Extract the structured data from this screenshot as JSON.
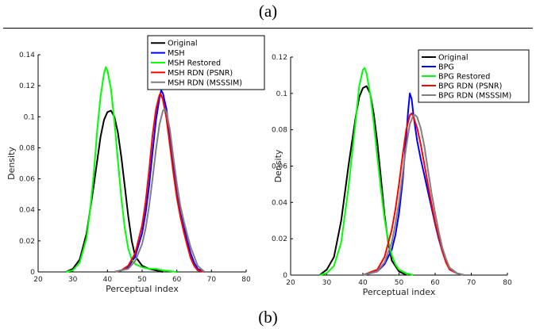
{
  "captions": {
    "top": "(a)",
    "bottom": "(b)"
  },
  "chart_data": [
    {
      "type": "line",
      "title": "",
      "xlabel": "Perceptual index",
      "ylabel": "Density",
      "xlim": [
        20,
        80
      ],
      "ylim": [
        0,
        0.14
      ],
      "xticks": [
        "20",
        "30",
        "40",
        "50",
        "60",
        "70",
        "80"
      ],
      "yticks": [
        "0",
        "0.02",
        "0.04",
        "0.06",
        "0.08",
        "0.1",
        "0.12",
        "0.14"
      ],
      "grid": false,
      "legend_position": "top-right",
      "series": [
        {
          "name": "Original",
          "color": "#000000",
          "points": [
            [
              28,
              0
            ],
            [
              30,
              0.002
            ],
            [
              32,
              0.008
            ],
            [
              34,
              0.025
            ],
            [
              36,
              0.055
            ],
            [
              38,
              0.087
            ],
            [
              39,
              0.098
            ],
            [
              40,
              0.103
            ],
            [
              41,
              0.104
            ],
            [
              42,
              0.1
            ],
            [
              43,
              0.09
            ],
            [
              44,
              0.074
            ],
            [
              45,
              0.055
            ],
            [
              46,
              0.036
            ],
            [
              47,
              0.02
            ],
            [
              48,
              0.01
            ],
            [
              50,
              0.004
            ],
            [
              52,
              0.002
            ],
            [
              54,
              0.001
            ],
            [
              56,
              0
            ]
          ]
        },
        {
          "name": "MSH",
          "color": "#0000ff",
          "points": [
            [
              42,
              0
            ],
            [
              44,
              0.001
            ],
            [
              46,
              0.003
            ],
            [
              48,
              0.01
            ],
            [
              50,
              0.025
            ],
            [
              51,
              0.038
            ],
            [
              52,
              0.055
            ],
            [
              53,
              0.077
            ],
            [
              54,
              0.098
            ],
            [
              55,
              0.112
            ],
            [
              55.5,
              0.117
            ],
            [
              56,
              0.115
            ],
            [
              57,
              0.105
            ],
            [
              58,
              0.088
            ],
            [
              59,
              0.068
            ],
            [
              60,
              0.05
            ],
            [
              61,
              0.038
            ],
            [
              62,
              0.029
            ],
            [
              63,
              0.02
            ],
            [
              64,
              0.012
            ],
            [
              65,
              0.006
            ],
            [
              66,
              0.002
            ],
            [
              68,
              0
            ]
          ]
        },
        {
          "name": "MSH Restored",
          "color": "#00ff00",
          "points": [
            [
              28,
              0
            ],
            [
              30,
              0.001
            ],
            [
              32,
              0.006
            ],
            [
              34,
              0.022
            ],
            [
              35,
              0.04
            ],
            [
              36,
              0.062
            ],
            [
              37,
              0.09
            ],
            [
              38,
              0.113
            ],
            [
              39,
              0.128
            ],
            [
              39.5,
              0.132
            ],
            [
              40,
              0.13
            ],
            [
              41,
              0.118
            ],
            [
              42,
              0.097
            ],
            [
              43,
              0.072
            ],
            [
              44,
              0.048
            ],
            [
              45,
              0.028
            ],
            [
              46,
              0.015
            ],
            [
              47,
              0.008
            ],
            [
              48,
              0.005
            ],
            [
              50,
              0.003
            ],
            [
              52,
              0.002
            ],
            [
              54,
              0.002
            ],
            [
              56,
              0.001
            ],
            [
              60,
              0
            ]
          ]
        },
        {
          "name": "MSH RDN (PSNR)",
          "color": "#ff0000",
          "points": [
            [
              42,
              0
            ],
            [
              44,
              0.001
            ],
            [
              46,
              0.004
            ],
            [
              48,
              0.012
            ],
            [
              50,
              0.03
            ],
            [
              51,
              0.045
            ],
            [
              52,
              0.065
            ],
            [
              53,
              0.088
            ],
            [
              54,
              0.105
            ],
            [
              55,
              0.114
            ],
            [
              55.3,
              0.115
            ],
            [
              56,
              0.111
            ],
            [
              57,
              0.099
            ],
            [
              58,
              0.082
            ],
            [
              59,
              0.064
            ],
            [
              60,
              0.048
            ],
            [
              61,
              0.036
            ],
            [
              62,
              0.026
            ],
            [
              63,
              0.017
            ],
            [
              64,
              0.009
            ],
            [
              65,
              0.004
            ],
            [
              66,
              0.001
            ],
            [
              68,
              0
            ]
          ]
        },
        {
          "name": "MSH RDN (MSSSIM)",
          "color": "#808080",
          "points": [
            [
              42,
              0
            ],
            [
              44,
              0.001
            ],
            [
              46,
              0.002
            ],
            [
              48,
              0.007
            ],
            [
              50,
              0.018
            ],
            [
              51,
              0.028
            ],
            [
              52,
              0.042
            ],
            [
              53,
              0.06
            ],
            [
              54,
              0.079
            ],
            [
              55,
              0.095
            ],
            [
              56,
              0.104
            ],
            [
              56.5,
              0.105
            ],
            [
              57,
              0.103
            ],
            [
              58,
              0.092
            ],
            [
              59,
              0.074
            ],
            [
              60,
              0.057
            ],
            [
              61,
              0.043
            ],
            [
              62,
              0.033
            ],
            [
              63,
              0.024
            ],
            [
              64,
              0.016
            ],
            [
              65,
              0.01
            ],
            [
              66,
              0.004
            ],
            [
              68,
              0
            ]
          ]
        }
      ]
    },
    {
      "type": "line",
      "title": "",
      "xlabel": "Perceptual index",
      "ylabel": "Density",
      "xlim": [
        20,
        80
      ],
      "ylim": [
        0,
        0.12
      ],
      "xticks": [
        "20",
        "30",
        "40",
        "50",
        "60",
        "70",
        "80"
      ],
      "yticks": [
        "0",
        "0.02",
        "0.04",
        "0.06",
        "0.08",
        "0.1",
        "0.12"
      ],
      "grid": false,
      "legend_position": "top-right",
      "series": [
        {
          "name": "Original",
          "color": "#000000",
          "points": [
            [
              28,
              0
            ],
            [
              30,
              0.003
            ],
            [
              32,
              0.01
            ],
            [
              34,
              0.03
            ],
            [
              36,
              0.06
            ],
            [
              38,
              0.087
            ],
            [
              39,
              0.098
            ],
            [
              40,
              0.103
            ],
            [
              41,
              0.104
            ],
            [
              42,
              0.1
            ],
            [
              43,
              0.089
            ],
            [
              44,
              0.073
            ],
            [
              45,
              0.053
            ],
            [
              46,
              0.033
            ],
            [
              47,
              0.018
            ],
            [
              48,
              0.008
            ],
            [
              50,
              0.002
            ],
            [
              52,
              0
            ]
          ]
        },
        {
          "name": "BPG",
          "color": "#0000ff",
          "points": [
            [
              40,
              0
            ],
            [
              44,
              0.002
            ],
            [
              46,
              0.006
            ],
            [
              48,
              0.014
            ],
            [
              49,
              0.022
            ],
            [
              50,
              0.034
            ],
            [
              51,
              0.052
            ],
            [
              52,
              0.076
            ],
            [
              52.5,
              0.09
            ],
            [
              53,
              0.1
            ],
            [
              53.5,
              0.097
            ],
            [
              54,
              0.088
            ],
            [
              55,
              0.074
            ],
            [
              56,
              0.064
            ],
            [
              57,
              0.055
            ],
            [
              58,
              0.046
            ],
            [
              59,
              0.037
            ],
            [
              60,
              0.028
            ],
            [
              61,
              0.02
            ],
            [
              62,
              0.013
            ],
            [
              63,
              0.008
            ],
            [
              64,
              0.004
            ],
            [
              66,
              0.001
            ],
            [
              68,
              0
            ]
          ]
        },
        {
          "name": "BPG Restored",
          "color": "#00ff00",
          "points": [
            [
              28,
              0
            ],
            [
              30,
              0.001
            ],
            [
              32,
              0.005
            ],
            [
              34,
              0.018
            ],
            [
              36,
              0.048
            ],
            [
              38,
              0.085
            ],
            [
              39,
              0.104
            ],
            [
              40,
              0.113
            ],
            [
              40.5,
              0.114
            ],
            [
              41,
              0.111
            ],
            [
              42,
              0.1
            ],
            [
              43,
              0.084
            ],
            [
              44,
              0.065
            ],
            [
              45,
              0.047
            ],
            [
              46,
              0.031
            ],
            [
              47,
              0.019
            ],
            [
              48,
              0.011
            ],
            [
              49,
              0.006
            ],
            [
              50,
              0.003
            ],
            [
              52,
              0.001
            ],
            [
              54,
              0
            ]
          ]
        },
        {
          "name": "BPG RDN (PSNR)",
          "color": "#ff0000",
          "points": [
            [
              40,
              0
            ],
            [
              44,
              0.003
            ],
            [
              46,
              0.01
            ],
            [
              48,
              0.025
            ],
            [
              49,
              0.036
            ],
            [
              50,
              0.05
            ],
            [
              51,
              0.066
            ],
            [
              52,
              0.08
            ],
            [
              53,
              0.088
            ],
            [
              53.5,
              0.089
            ],
            [
              54,
              0.087
            ],
            [
              55,
              0.081
            ],
            [
              56,
              0.072
            ],
            [
              57,
              0.061
            ],
            [
              58,
              0.05
            ],
            [
              59,
              0.039
            ],
            [
              60,
              0.029
            ],
            [
              61,
              0.021
            ],
            [
              62,
              0.013
            ],
            [
              63,
              0.007
            ],
            [
              64,
              0.003
            ],
            [
              66,
              0.001
            ],
            [
              68,
              0
            ]
          ]
        },
        {
          "name": "BPG RDN (MSSSIM)",
          "color": "#808080",
          "points": [
            [
              40,
              0
            ],
            [
              44,
              0.002
            ],
            [
              46,
              0.007
            ],
            [
              48,
              0.018
            ],
            [
              49,
              0.028
            ],
            [
              50,
              0.04
            ],
            [
              51,
              0.056
            ],
            [
              52,
              0.071
            ],
            [
              53,
              0.083
            ],
            [
              54,
              0.088
            ],
            [
              54.5,
              0.088
            ],
            [
              55,
              0.087
            ],
            [
              56,
              0.081
            ],
            [
              57,
              0.071
            ],
            [
              58,
              0.058
            ],
            [
              59,
              0.045
            ],
            [
              60,
              0.034
            ],
            [
              61,
              0.024
            ],
            [
              62,
              0.015
            ],
            [
              63,
              0.009
            ],
            [
              64,
              0.004
            ],
            [
              66,
              0.001
            ],
            [
              68,
              0
            ]
          ]
        }
      ]
    }
  ]
}
